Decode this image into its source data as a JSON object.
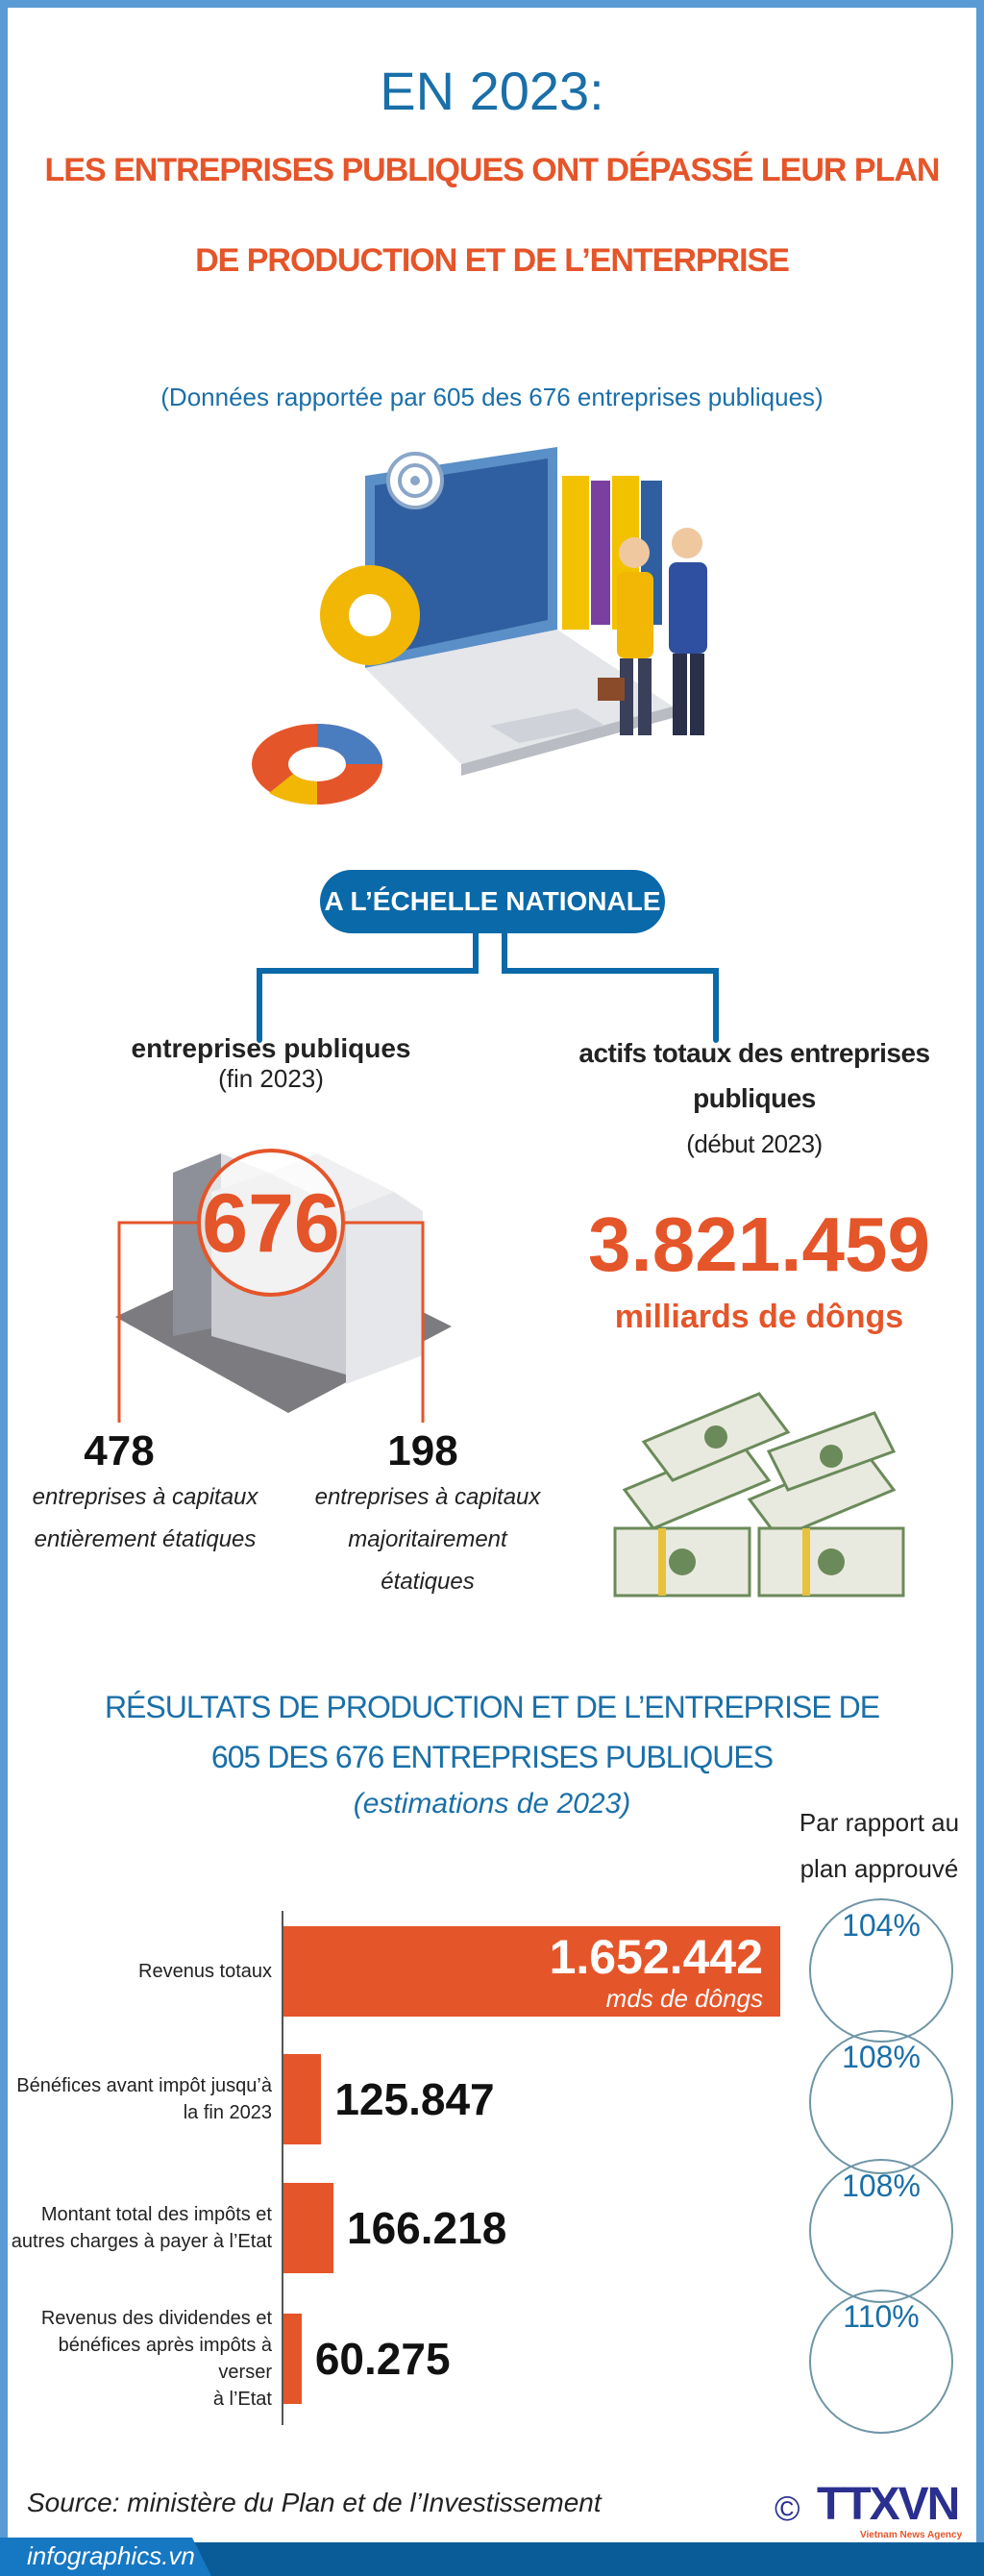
{
  "header": {
    "line1": "EN 2023:",
    "line2": "LES ENTREPRISES PUBLIQUES ONT DÉPASSÉ LEUR PLAN",
    "line3": "DE PRODUCTION ET DE L’ENTERPRISE",
    "subtitle": "(Données rapportée par 605 des 676 entreprises publiques)"
  },
  "national": {
    "pill": "A L’ÉCHELLE NATIONALE",
    "left": {
      "heading": "entreprises publiques",
      "sub": "(fin 2023)",
      "total": "676",
      "split": [
        {
          "value": "478",
          "line1": "entreprises à capitaux",
          "line2": "entièrement étatiques"
        },
        {
          "value": "198",
          "line1": "entreprises à capitaux",
          "line2": "majoritairement",
          "line3": "étatiques"
        }
      ]
    },
    "right": {
      "heading1": "actifs totaux des entreprises",
      "heading2": "publiques",
      "sub": "(début 2023)",
      "value": "3.821.459",
      "unit": "milliards de dôngs"
    }
  },
  "results": {
    "title1": "RÉSULTATS DE PRODUCTION ET DE L’ENTREPRISE DE",
    "title2": "605 DES 676 ENTREPRISES PUBLIQUES",
    "subtitle": "(estimations de 2023)",
    "compare1": "Par rapport au",
    "compare2": "plan approuvé"
  },
  "chart_data": {
    "type": "bar",
    "orientation": "horizontal",
    "unit": "mds de dôngs",
    "categories": [
      [
        "Revenus totaux"
      ],
      [
        "Bénéfices  avant impôt jusqu’à",
        "la fin 2023"
      ],
      [
        "Montant total des impôts et",
        "autres charges à payer à l’Etat"
      ],
      [
        "Revenus des dividendes et",
        "bénéfices après impôts à verser",
        "à l’Etat"
      ]
    ],
    "values": [
      1652442,
      125847,
      166218,
      60275
    ],
    "labels": [
      "1.652.442",
      "125.847",
      "166.218",
      "60.275"
    ],
    "vs_plan": [
      "104%",
      "108%",
      "108%",
      "110%"
    ],
    "bar_color": "#e5552a"
  },
  "footer": {
    "source": "Source: ministère du Plan et de l’Investissement",
    "site": "infographics.vn",
    "copyright": "©",
    "logo": "TTXVN",
    "agency": "Vietnam News Agency"
  }
}
